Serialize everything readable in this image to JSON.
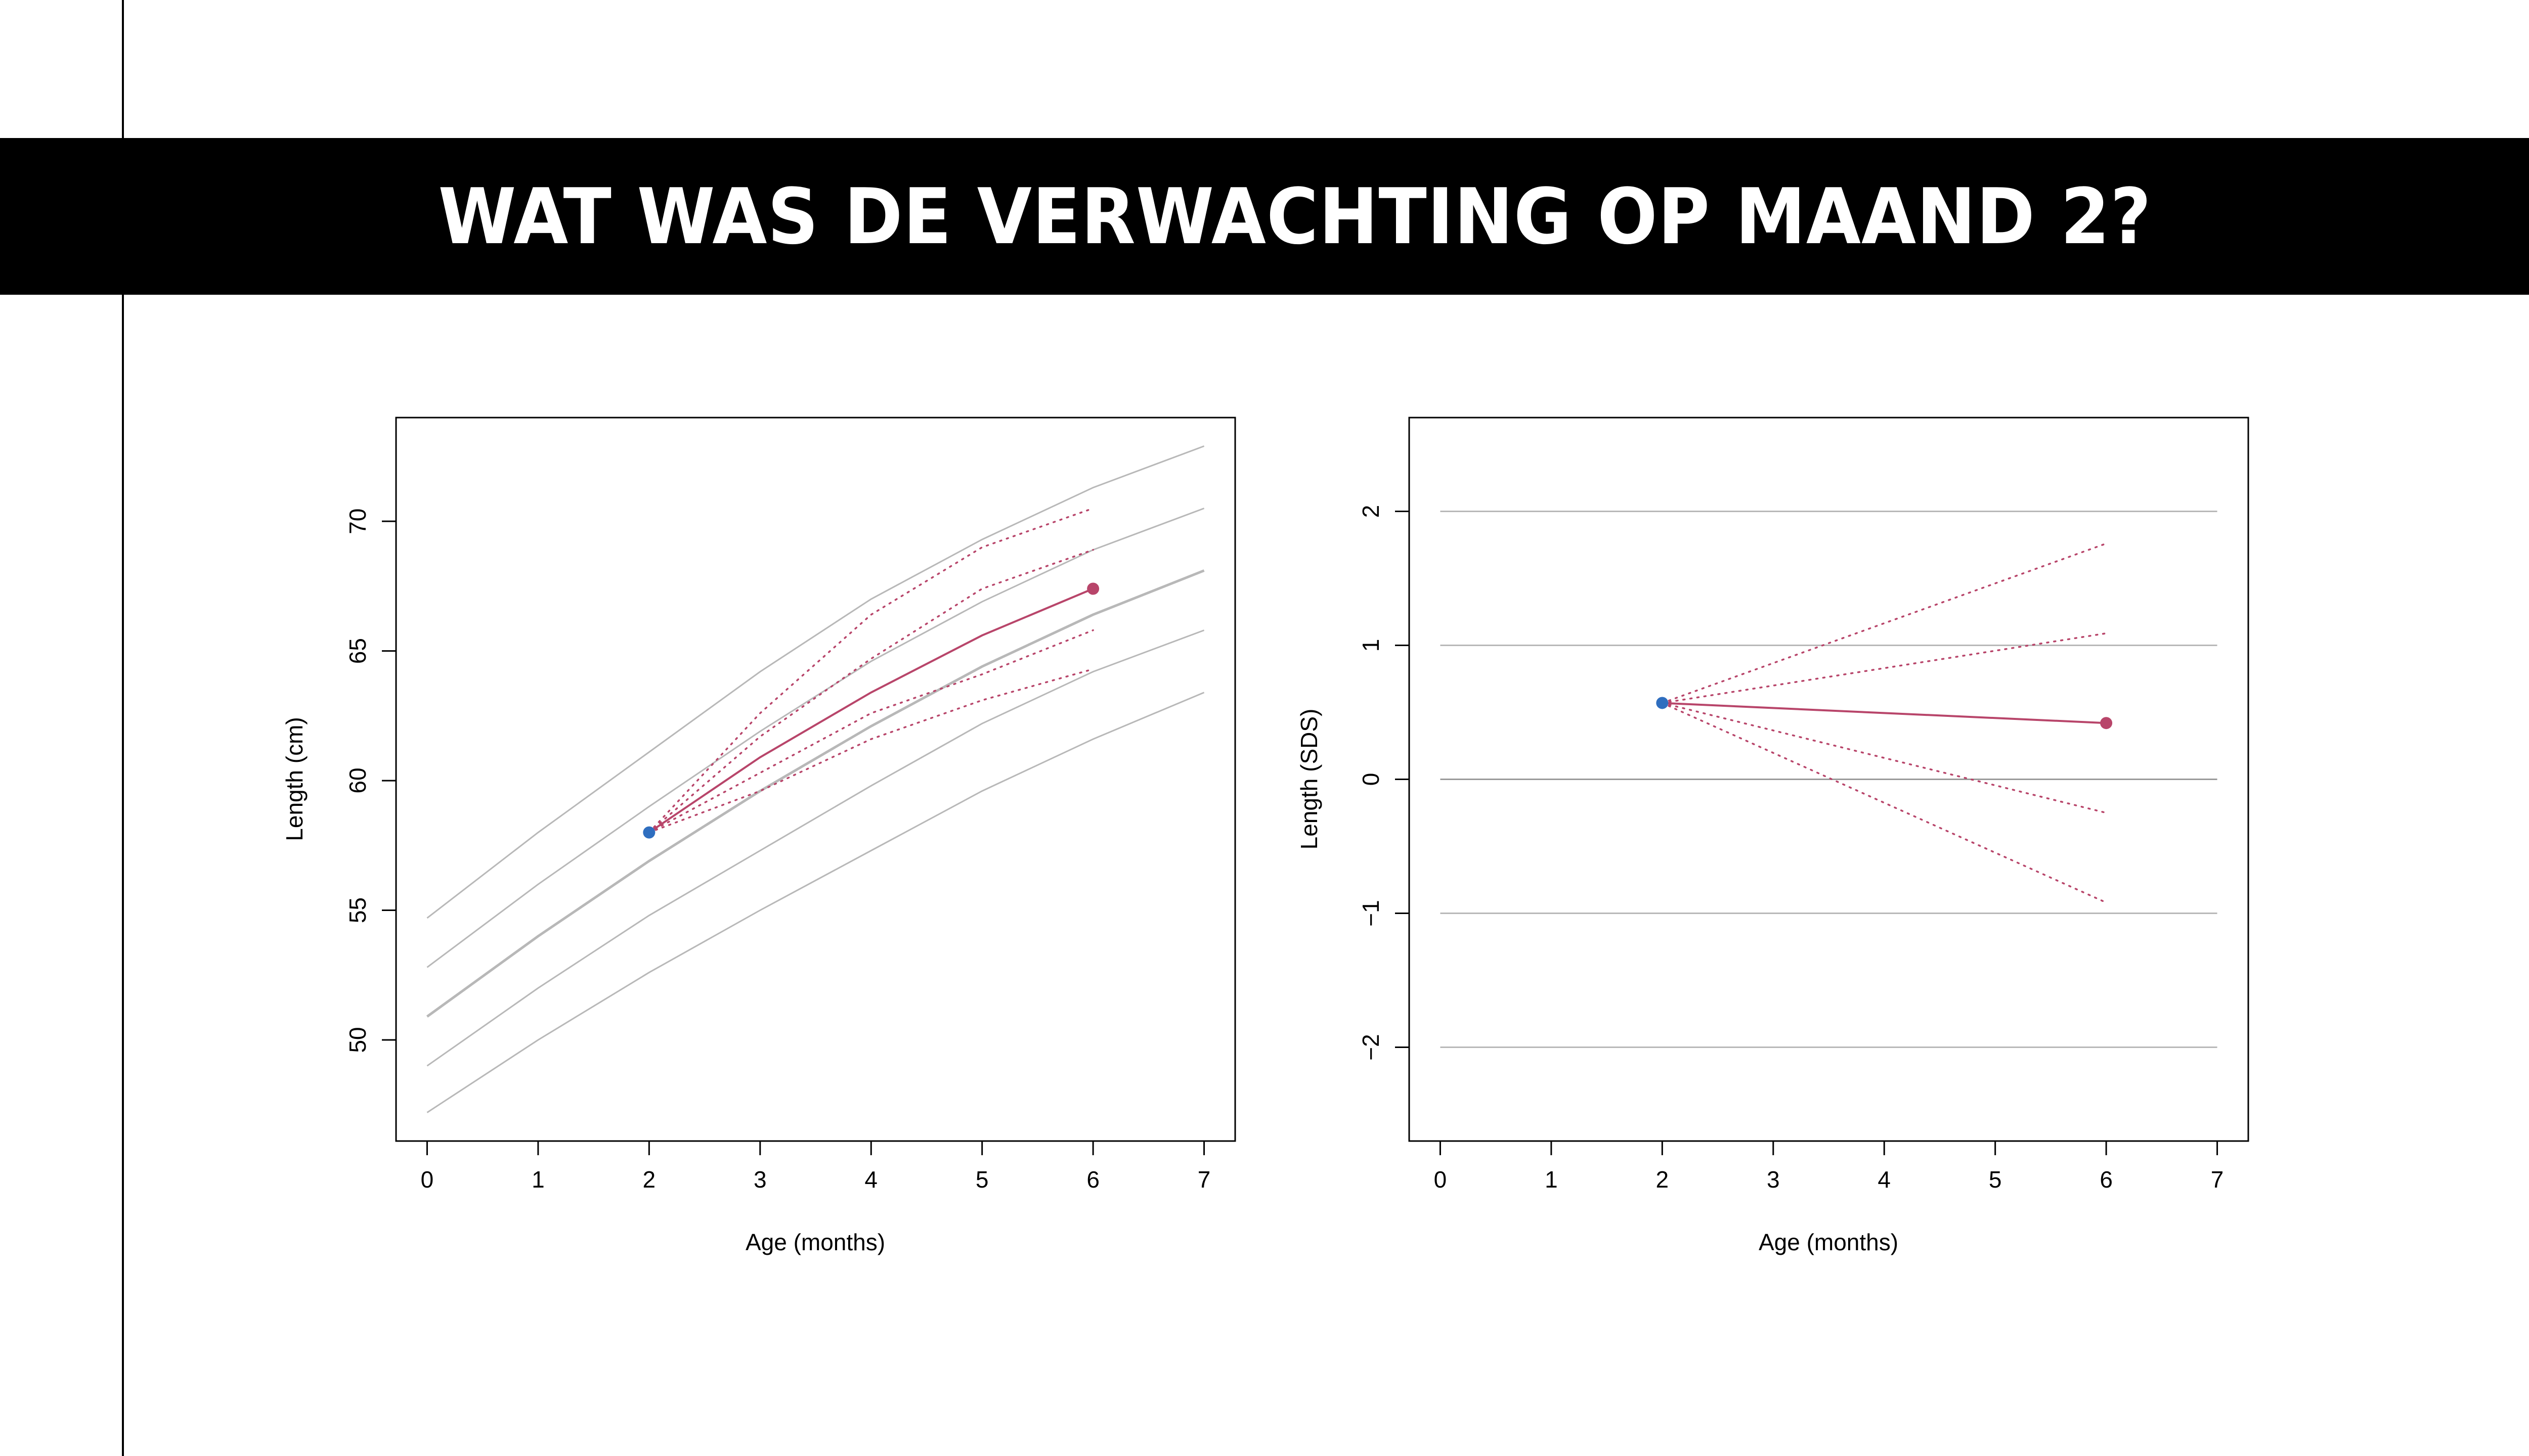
{
  "slide": {
    "title": "WAT WAS DE VERWACHTING OP MAAND 2?"
  },
  "colors": {
    "observed_point": "#2f6ebf",
    "prediction": "#b8456a",
    "reference_lines": "#b8b8b8",
    "title_band": "#000000",
    "title_text": "#ffffff"
  },
  "chart_data": [
    {
      "type": "line",
      "xlabel": "Age (months)",
      "ylabel": "Length (cm)",
      "xlim": [
        -0.28,
        7.28
      ],
      "ylim": [
        46.1,
        74.0
      ],
      "x_ticks": [
        0,
        1,
        2,
        3,
        4,
        5,
        6,
        7
      ],
      "y_ticks": [
        50,
        55,
        60,
        65,
        70
      ],
      "reference_curves": [
        {
          "sds": -2,
          "x": [
            0,
            1,
            2,
            3,
            4,
            5,
            6,
            7
          ],
          "y": [
            47.2,
            50.0,
            52.6,
            55.0,
            57.3,
            59.6,
            61.6,
            63.4
          ]
        },
        {
          "sds": -1,
          "x": [
            0,
            1,
            2,
            3,
            4,
            5,
            6,
            7
          ],
          "y": [
            49.0,
            52.0,
            54.8,
            57.3,
            59.8,
            62.2,
            64.2,
            65.8
          ]
        },
        {
          "sds": 0,
          "x": [
            0,
            1,
            2,
            3,
            4,
            5,
            6,
            7
          ],
          "y": [
            50.9,
            54.0,
            56.9,
            59.6,
            62.1,
            64.4,
            66.4,
            68.1
          ]
        },
        {
          "sds": 1,
          "x": [
            0,
            1,
            2,
            3,
            4,
            5,
            6,
            7
          ],
          "y": [
            52.8,
            56.0,
            59.0,
            61.9,
            64.6,
            66.9,
            68.9,
            70.5
          ]
        },
        {
          "sds": 2,
          "x": [
            0,
            1,
            2,
            3,
            4,
            5,
            6,
            7
          ],
          "y": [
            54.7,
            58.0,
            61.1,
            64.2,
            67.0,
            69.3,
            71.3,
            72.9
          ]
        }
      ],
      "observed": {
        "x": 2,
        "y": 58.0
      },
      "predicted": {
        "x": 6,
        "y": 67.4
      },
      "prediction_path": {
        "x": [
          2,
          3,
          4,
          5,
          6
        ],
        "y": [
          58.0,
          60.9,
          63.4,
          65.6,
          67.4
        ]
      },
      "prediction_bounds": [
        {
          "x": [
            2,
            3,
            4,
            5,
            6
          ],
          "y": [
            58.0,
            62.6,
            66.4,
            69.0,
            70.5
          ]
        },
        {
          "x": [
            2,
            3,
            4,
            5,
            6
          ],
          "y": [
            58.0,
            61.7,
            64.7,
            67.4,
            68.9
          ]
        },
        {
          "x": [
            2,
            3,
            4,
            5,
            6
          ],
          "y": [
            58.0,
            60.3,
            62.6,
            64.1,
            65.8
          ]
        },
        {
          "x": [
            2,
            3,
            4,
            5,
            6
          ],
          "y": [
            58.0,
            59.6,
            61.6,
            63.1,
            64.3
          ]
        }
      ]
    },
    {
      "type": "line",
      "xlabel": "Age (months)",
      "ylabel": "Length (SDS)",
      "xlim": [
        -0.28,
        7.28
      ],
      "ylim": [
        -2.7,
        2.7
      ],
      "x_ticks": [
        0,
        1,
        2,
        3,
        4,
        5,
        6,
        7
      ],
      "y_ticks": [
        -2,
        -1,
        0,
        1,
        2
      ],
      "y_tick_labels": [
        "−2",
        "−1",
        "0",
        "1",
        "2"
      ],
      "reference_lines": [
        -2,
        -1,
        0,
        1,
        2
      ],
      "observed": {
        "x": 2,
        "y": 0.57
      },
      "predicted": {
        "x": 6,
        "y": 0.42
      },
      "prediction_path": {
        "x": [
          2,
          6
        ],
        "y": [
          0.57,
          0.42
        ]
      },
      "prediction_bounds": [
        {
          "x": [
            2,
            6
          ],
          "y": [
            0.57,
            1.76
          ]
        },
        {
          "x": [
            2,
            6
          ],
          "y": [
            0.57,
            1.09
          ]
        },
        {
          "x": [
            2,
            6
          ],
          "y": [
            0.57,
            -0.25
          ]
        },
        {
          "x": [
            2,
            6
          ],
          "y": [
            0.57,
            -0.92
          ]
        }
      ]
    }
  ]
}
